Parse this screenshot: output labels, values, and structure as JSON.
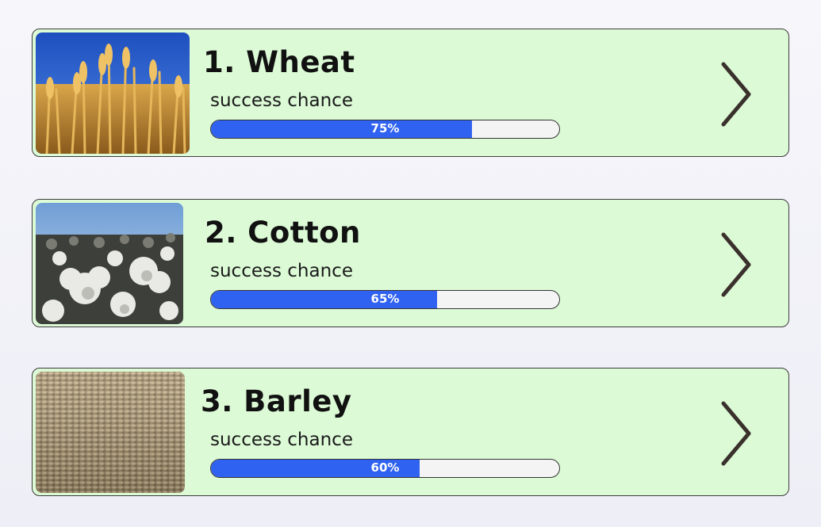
{
  "crops": [
    {
      "title": "1. Wheat",
      "subtitle": "success chance",
      "percent_label": "75%",
      "success_fraction": 0.75,
      "image_icon": "wheat-image"
    },
    {
      "title": "2. Cotton",
      "subtitle": "success chance",
      "percent_label": "65%",
      "success_fraction": 0.65,
      "image_icon": "cotton-image"
    },
    {
      "title": "3. Barley",
      "subtitle": "success chance",
      "percent_label": "60%",
      "success_fraction": 0.6,
      "image_icon": "barley-image"
    }
  ],
  "colors": {
    "card_background": "#dcfad6",
    "progress_fill": "#2f62f0",
    "progress_track": "#f4f4f4",
    "chevron": "#3a302c"
  },
  "icons": {
    "next": "chevron-right-icon"
  }
}
